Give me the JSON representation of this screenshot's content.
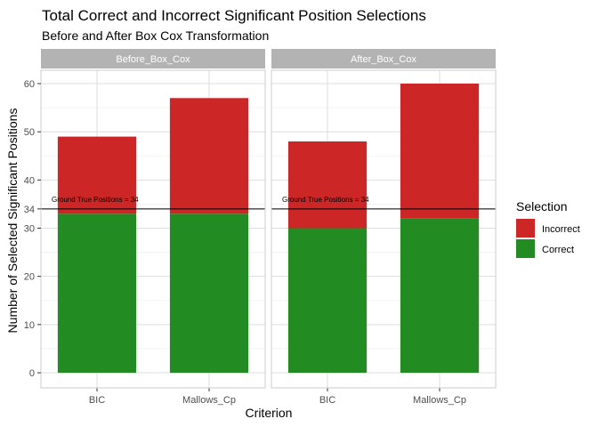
{
  "chart_data": {
    "type": "bar",
    "stacked": true,
    "title": "Total Correct and Incorrect Significant Position Selections",
    "subtitle": "Before and After Box Cox Transformation",
    "xlabel": "Criterion",
    "ylabel": "Number of Selected Significant Positions",
    "ylim": [
      0,
      62
    ],
    "yticks": [
      0,
      10,
      20,
      30,
      34,
      40,
      50,
      60
    ],
    "categories": [
      "BIC",
      "Mallows_Cp"
    ],
    "grid": true,
    "legend_position": "right",
    "legend": {
      "title": "Selection",
      "items": [
        {
          "label": "Incorrect",
          "color": "#cd2626"
        },
        {
          "label": "Correct",
          "color": "#228b22"
        }
      ]
    },
    "reference_line": {
      "y": 34,
      "label": "Ground True Positions = 34"
    },
    "facets": [
      {
        "label": "Before_Box_Cox",
        "series": [
          {
            "name": "Correct",
            "values": [
              33,
              33
            ]
          },
          {
            "name": "Incorrect",
            "values": [
              16,
              24
            ]
          }
        ]
      },
      {
        "label": "After_Box_Cox",
        "series": [
          {
            "name": "Correct",
            "values": [
              30,
              32
            ]
          },
          {
            "name": "Incorrect",
            "values": [
              18,
              28
            ]
          }
        ]
      }
    ]
  }
}
